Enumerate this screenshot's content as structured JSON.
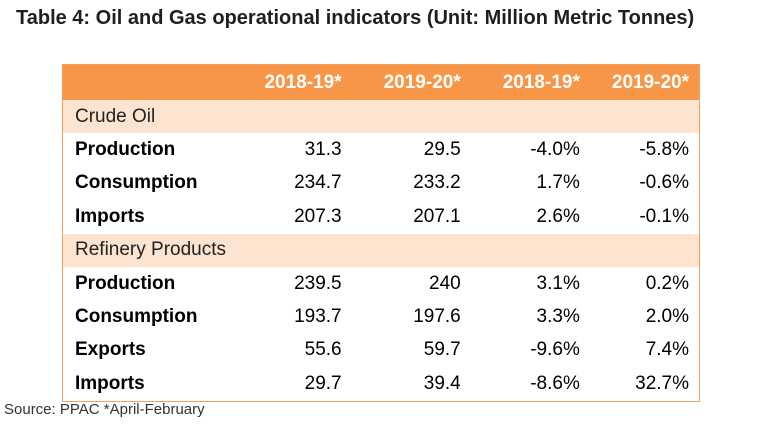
{
  "caption": "Table 4: Oil and Gas operational indicators (Unit: Million Metric Tonnes)",
  "header": [
    "",
    "2018-19*",
    "2019-20*",
    "2018-19*",
    "2019-20*"
  ],
  "sections": [
    {
      "title": "Crude Oil",
      "rows": [
        {
          "label": "Production",
          "values": [
            "31.3",
            "29.5",
            "-4.0%",
            "-5.8%"
          ]
        },
        {
          "label": "Consumption",
          "values": [
            "234.7",
            "233.2",
            "1.7%",
            "-0.6%"
          ]
        },
        {
          "label": "Imports",
          "values": [
            "207.3",
            "207.1",
            "2.6%",
            "-0.1%"
          ]
        }
      ]
    },
    {
      "title": "Refinery Products",
      "rows": [
        {
          "label": "Production",
          "values": [
            "239.5",
            "240",
            "3.1%",
            "0.2%"
          ]
        },
        {
          "label": "Consumption",
          "values": [
            "193.7",
            "197.6",
            "3.3%",
            "2.0%"
          ]
        },
        {
          "label": "Exports",
          "values": [
            "55.6",
            "59.7",
            "-9.6%",
            "7.4%"
          ]
        },
        {
          "label": "Imports",
          "values": [
            "29.7",
            "39.4",
            "-8.6%",
            "32.7%"
          ]
        }
      ]
    }
  ],
  "source": "Source: PPAC *April-February",
  "colors": {
    "header_bg": "#f79646",
    "section_bg": "#fde4d1",
    "border": "#f2a05a"
  }
}
